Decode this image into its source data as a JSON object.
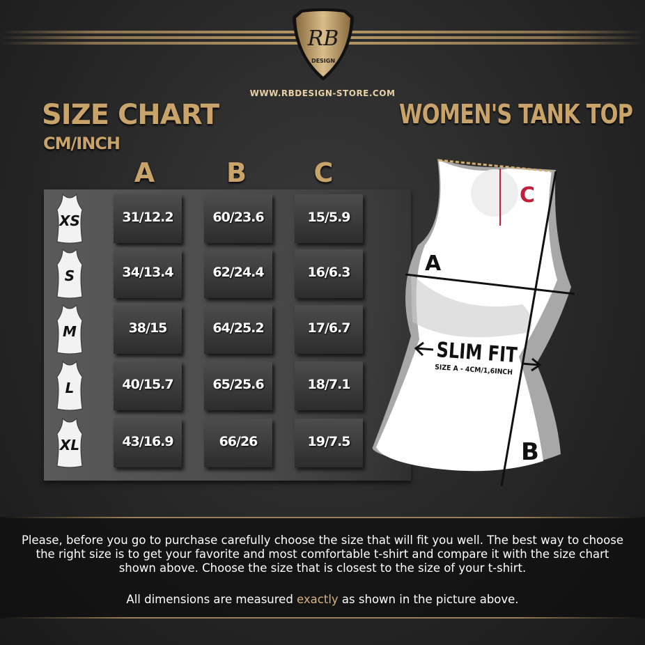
{
  "logo": {
    "monogram": "RB",
    "text": "DESIGN"
  },
  "url": "WWW.RBDESIGN-STORE.COM",
  "title": "SIZE CHART",
  "units": "CM/INCH",
  "product": "WOMEN'S TANK TOP",
  "columns": [
    "A",
    "B",
    "C"
  ],
  "rows": [
    {
      "size": "XS",
      "a": "31/12.2",
      "b": "60/23.6",
      "c": "15/5.9"
    },
    {
      "size": "S",
      "a": "34/13.4",
      "b": "62/24.4",
      "c": "16/6.3"
    },
    {
      "size": "M",
      "a": "38/15",
      "b": "64/25.2",
      "c": "17/6.7"
    },
    {
      "size": "L",
      "a": "40/15.7",
      "b": "65/25.6",
      "c": "18/7.1"
    },
    {
      "size": "XL",
      "a": "43/16.9",
      "b": "66/26",
      "c": "19/7.5"
    }
  ],
  "diagram": {
    "label_a": "A",
    "label_b": "B",
    "label_c": "C",
    "fit": "SLIM FIT",
    "fit_note": "SIZE A - 4CM/1,6INCH"
  },
  "note": {
    "line1": "Please, before you go to purchase carefully choose the size that will fit you well. The best way to choose",
    "line2": "the right size is to get your favorite and most comfortable t-shirt and compare it with the size chart",
    "line3": "shown above.  Choose the size that is closest to the size of your t-shirt.",
    "line4_pre": "All dimensions are measured ",
    "line4_hl": "exactly",
    "line4_post": " as shown in the picture above."
  },
  "colors": {
    "gold": "#c9a46a",
    "highlight": "#d9b37a",
    "accent_c": "#c0203a"
  }
}
